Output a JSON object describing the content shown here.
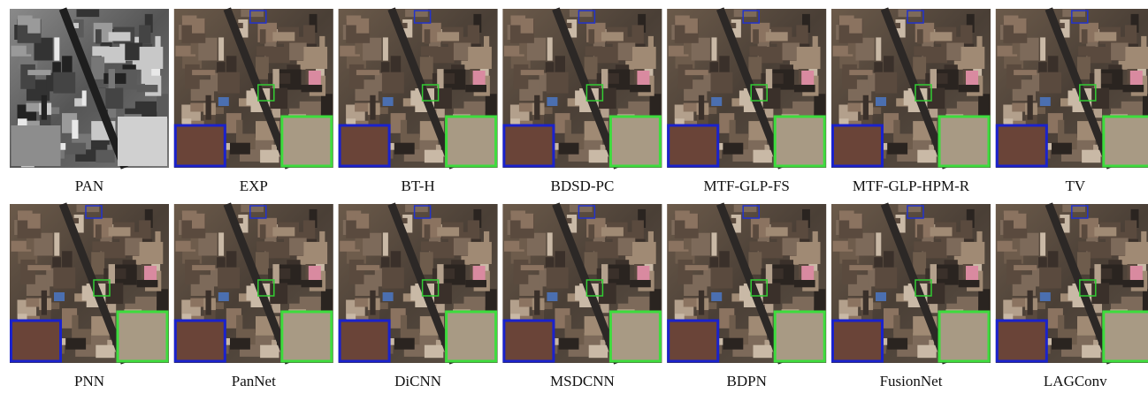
{
  "panels": [
    {
      "label": "PAN"
    },
    {
      "label": "EXP"
    },
    {
      "label": "BT-H"
    },
    {
      "label": "BDSD-PC"
    },
    {
      "label": "MTF-GLP-FS"
    },
    {
      "label": "MTF-GLP-HPM-R"
    },
    {
      "label": "TV"
    },
    {
      "label": "PNN"
    },
    {
      "label": "PanNet"
    },
    {
      "label": "DiCNN"
    },
    {
      "label": "MSDCNN"
    },
    {
      "label": "BDPN"
    },
    {
      "label": "FusionNet"
    },
    {
      "label": "LAGConv"
    }
  ]
}
